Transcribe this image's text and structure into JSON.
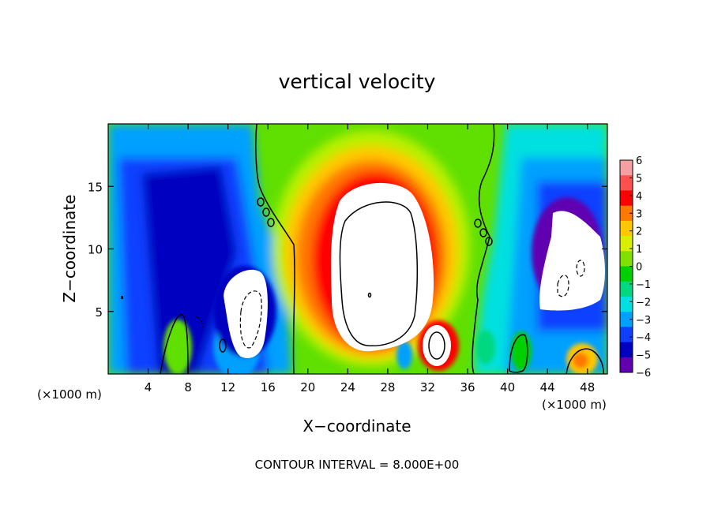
{
  "chart_data": {
    "type": "heatmap",
    "title": "vertical velocity",
    "xlabel": "X−coordinate",
    "ylabel": "Z−coordinate",
    "x_unit_left": "(×1000 m)",
    "x_unit_right": "(×1000 m)",
    "footer": "CONTOUR INTERVAL = 8.000E+00",
    "xlim": [
      0,
      50
    ],
    "ylim": [
      0,
      20
    ],
    "x_ticks": [
      4,
      8,
      12,
      16,
      20,
      24,
      28,
      32,
      36,
      40,
      44,
      48
    ],
    "x_tick_labels": [
      "4",
      "8",
      "12",
      "16",
      "20",
      "24",
      "28",
      "32",
      "36",
      "40",
      "44",
      "48"
    ],
    "y_ticks": [
      5,
      10,
      15
    ],
    "y_tick_labels": [
      "5",
      "10",
      "15"
    ],
    "colorbar": {
      "levels": [
        6,
        5,
        4,
        3,
        2,
        1,
        0,
        -1,
        -2,
        -3,
        -4,
        -5,
        -6
      ],
      "labels": [
        "6",
        "5",
        "4",
        "3",
        "2",
        "1",
        "0",
        "−1",
        "−2",
        "−3",
        "−4",
        "−5",
        "−6"
      ],
      "colors": [
        "#f4a0a0",
        "#ff5050",
        "#ff0000",
        "#ff7800",
        "#ffc800",
        "#d8f000",
        "#80e000",
        "#00d000",
        "#00d880",
        "#00e0e0",
        "#00a0ff",
        "#1040ff",
        "#0000c0",
        "#6000b0"
      ]
    },
    "features": [
      {
        "name": "updraft core",
        "x_center": 27.0,
        "z_center": 9.0,
        "x_radius": 7.0,
        "z_radius": 8.5,
        "sign": "positive"
      },
      {
        "name": "secondary updraft",
        "x_center": 33.0,
        "z_center": 2.2,
        "x_radius": 1.8,
        "z_radius": 2.5,
        "sign": "positive"
      },
      {
        "name": "left downdraft",
        "x_center": 14.2,
        "z_center": 6.0,
        "x_radius": 2.5,
        "z_radius": 4.5,
        "sign": "negative"
      },
      {
        "name": "right downdraft",
        "x_center": 46.0,
        "z_center": 9.5,
        "x_radius": 3.5,
        "z_radius": 5.5,
        "sign": "negative"
      }
    ]
  }
}
